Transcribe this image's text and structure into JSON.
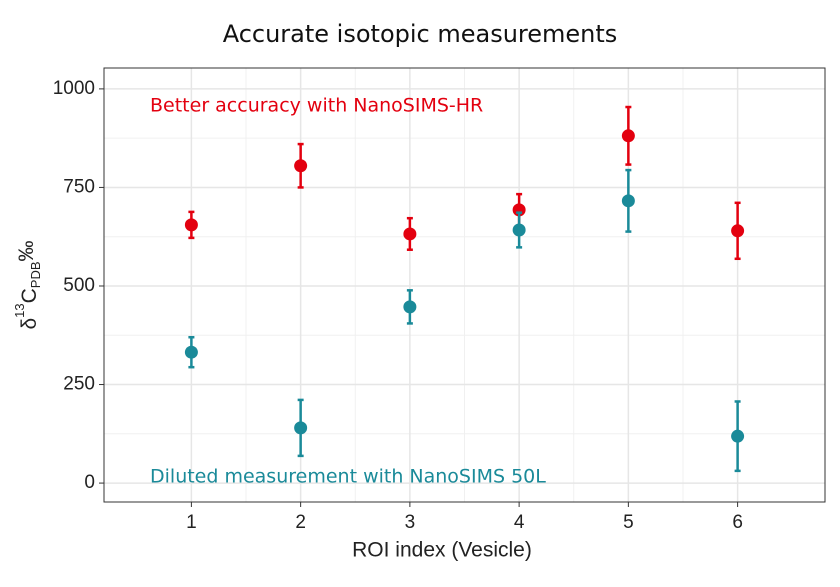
{
  "chart_data": {
    "type": "errorbar-scatter",
    "title": "Accurate isotopic measurements",
    "xlabel": "ROI index (Vesicle)",
    "ylabel": {
      "delta": "δ",
      "sup": "13",
      "base": "C",
      "sub": "PDB",
      "unit": "‰"
    },
    "x": [
      1,
      2,
      3,
      4,
      5,
      6
    ],
    "series": [
      {
        "name": "Better accuracy with NanoSIMS-HR",
        "color": "#e3000f",
        "values": [
          655,
          805,
          632,
          693,
          881,
          640
        ],
        "errors": [
          33,
          55,
          40,
          40,
          73,
          71
        ]
      },
      {
        "name": "Diluted measurement with NanoSIMS 50L",
        "color": "#1a8a99",
        "values": [
          332,
          140,
          447,
          642,
          716,
          119
        ],
        "errors": [
          38,
          71,
          42,
          44,
          78,
          88
        ]
      }
    ],
    "xlim": [
      0.2,
      6.8
    ],
    "xticks": [
      1,
      2,
      3,
      4,
      5,
      6
    ],
    "ylim": [
      -48,
      1053
    ],
    "yticks": [
      0,
      250,
      500,
      750,
      1000
    ],
    "grid": true
  }
}
